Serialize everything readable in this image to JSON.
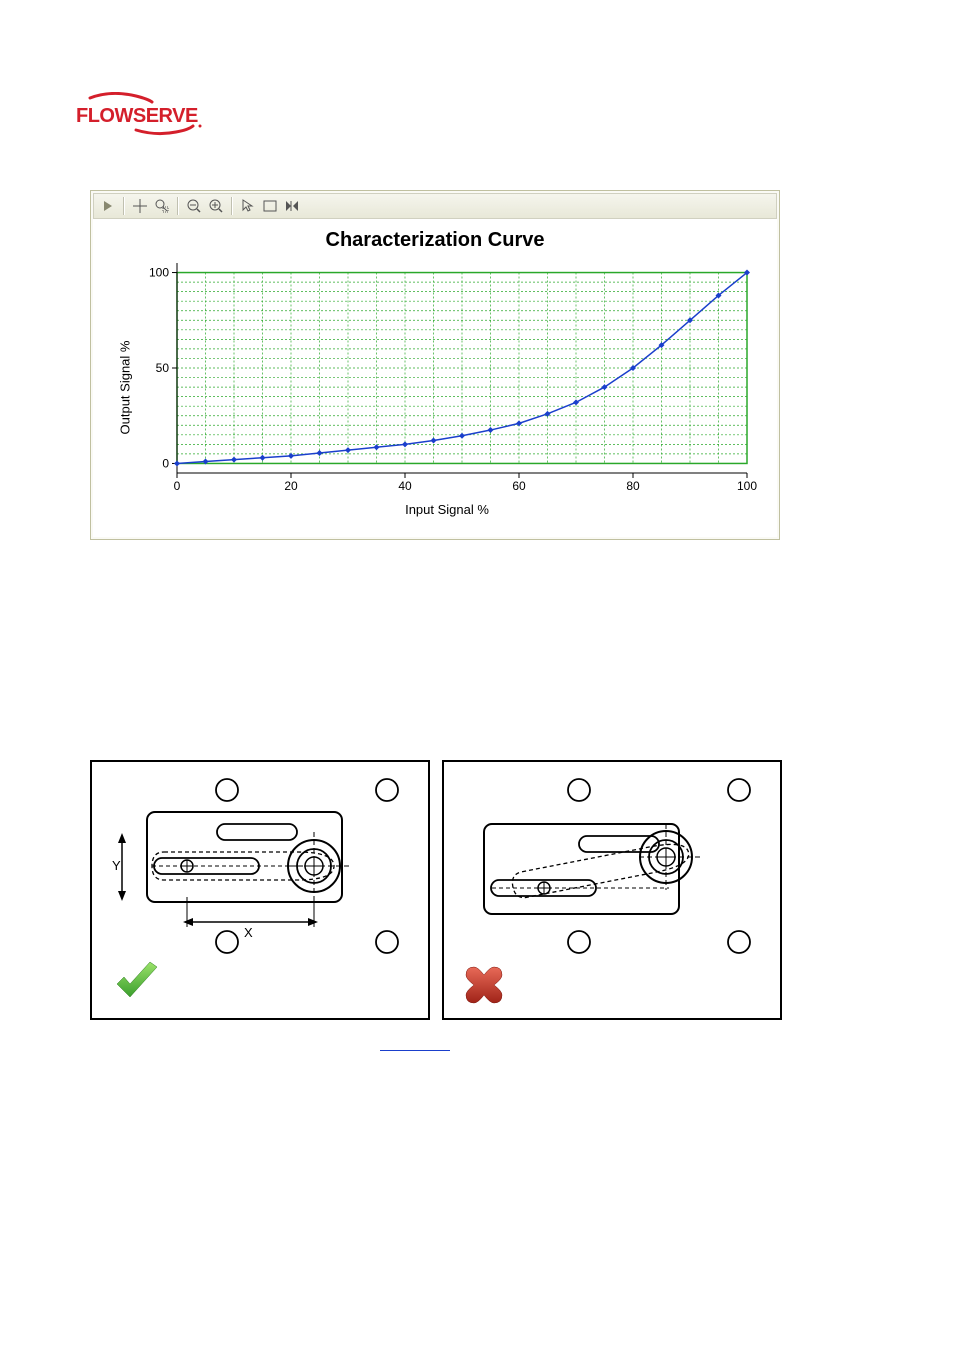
{
  "logo_text": "FLOWSERVE",
  "logo_color": "#d41f2b",
  "chart": {
    "title": "Characterization Curve",
    "xlabel": "Input Signal %",
    "ylabel": "Output Signal %",
    "xlim": [
      0,
      100
    ],
    "ylim": [
      -5,
      105
    ],
    "xtick_step": 20,
    "ytick_labels": [
      0,
      50,
      100
    ],
    "minor_grid_step_x": 5,
    "minor_grid_step_y": 5,
    "grid_color": "#2aa82a",
    "grid_dash": "2,2",
    "border_color": "#2aa82a",
    "line_color": "#1a3fcc",
    "line_width": 1.5,
    "marker_color": "#1a3fcc",
    "marker_size": 3,
    "background_color": "#ffffff",
    "panel_bg": "#fafaf5",
    "toolbar_bg_top": "#f5f5ed",
    "toolbar_bg_bottom": "#e8e8d8",
    "title_fontsize": 20,
    "label_fontsize": 13,
    "tick_fontsize": 12,
    "data_x": [
      0,
      5,
      10,
      15,
      20,
      25,
      30,
      35,
      40,
      45,
      50,
      55,
      60,
      65,
      70,
      75,
      80,
      85,
      90,
      95,
      100
    ],
    "data_y": [
      0,
      1,
      2,
      3,
      4,
      5.5,
      7,
      8.5,
      10,
      12,
      14.5,
      17.5,
      21,
      26,
      32,
      40,
      50,
      62,
      75,
      88,
      100
    ]
  },
  "diagram": {
    "correct_label": "correct",
    "incorrect_label": "incorrect",
    "x_dim_label": "X",
    "y_dim_label": "Y",
    "stroke_color": "#000000",
    "check_color_top": "#7ed957",
    "check_color_bottom": "#3a9e2d",
    "cross_color_top": "#e04a3a",
    "cross_color_bottom": "#a02318"
  }
}
